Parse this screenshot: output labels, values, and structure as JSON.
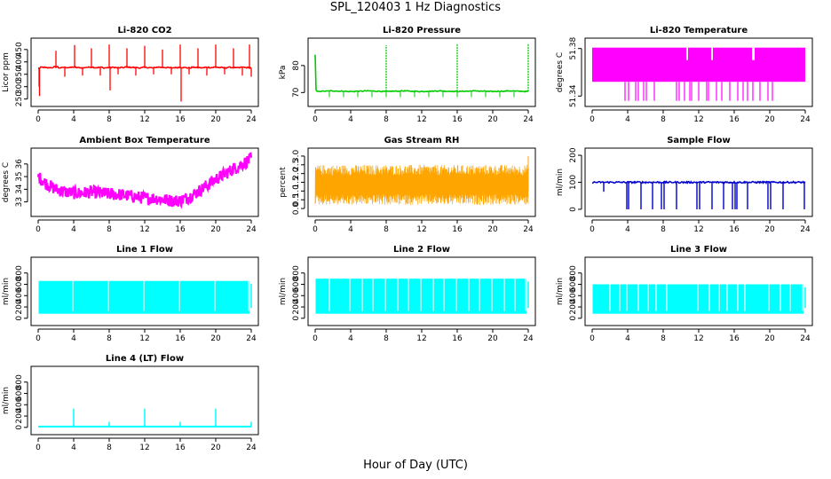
{
  "figure": {
    "title": "SPL_120403  1 Hz Diagnostics",
    "xlabel": "Hour of Day (UTC)"
  },
  "chart_data": [
    {
      "type": "line",
      "title": "Li-820 CO2",
      "ylabel": "Licor ppm",
      "color": "#ff0000",
      "xlim": [
        0,
        24
      ],
      "x_ticks": [
        0,
        4,
        8,
        12,
        16,
        20,
        24
      ],
      "ylim": [
        238,
        478
      ],
      "y_ticks": [
        250,
        300,
        350,
        400,
        450
      ],
      "baseline": 375,
      "x": [
        0,
        0.5,
        1,
        1.5,
        2,
        2.5,
        3,
        3.5,
        4,
        4.5,
        5,
        5.5,
        6,
        6.5,
        7,
        7.5,
        8,
        8.5,
        9,
        9.5,
        10,
        10.5,
        11,
        11.5,
        12,
        12.5,
        13,
        13.5,
        14,
        14.5,
        15,
        15.5,
        16,
        16.5,
        17,
        17.5,
        18,
        18.5,
        19,
        19.5,
        20,
        20.5,
        21,
        21.5,
        22,
        22.5,
        23,
        23.5,
        24
      ],
      "values": [
        375,
        378,
        376,
        377,
        380,
        376,
        378,
        377,
        379,
        377,
        376,
        378,
        379,
        377,
        378,
        376,
        377,
        378,
        376,
        377,
        379,
        378,
        377,
        376,
        378,
        377,
        376,
        379,
        378,
        377,
        376,
        377,
        378,
        377,
        376,
        378,
        377,
        376,
        378,
        377,
        379,
        377,
        376,
        378,
        377,
        376,
        378,
        377,
        376
      ],
      "spikes": [
        [
          0.1,
          300
        ],
        [
          0.15,
          262
        ],
        [
          2.0,
          445
        ],
        [
          3.0,
          340
        ],
        [
          4.1,
          468
        ],
        [
          5.0,
          345
        ],
        [
          6.0,
          455
        ],
        [
          7.0,
          345
        ],
        [
          8.0,
          470
        ],
        [
          8.1,
          285
        ],
        [
          9.0,
          350
        ],
        [
          10.0,
          455
        ],
        [
          11.0,
          345
        ],
        [
          12.0,
          465
        ],
        [
          13.0,
          350
        ],
        [
          14.0,
          450
        ],
        [
          15.0,
          350
        ],
        [
          16.0,
          470
        ],
        [
          16.1,
          240
        ],
        [
          17.0,
          350
        ],
        [
          18.0,
          455
        ],
        [
          19.0,
          345
        ],
        [
          20.0,
          470
        ],
        [
          21.0,
          350
        ],
        [
          22.0,
          455
        ],
        [
          23.0,
          345
        ],
        [
          23.8,
          470
        ],
        [
          24.0,
          340
        ]
      ]
    },
    {
      "type": "line",
      "title": "Li-820 Pressure",
      "ylabel": "kPa",
      "color": "#00cc00",
      "xlim": [
        0,
        24
      ],
      "x_ticks": [
        0,
        4,
        8,
        12,
        16,
        20,
        24
      ],
      "ylim": [
        66.5,
        88.5
      ],
      "y_ticks": [
        70,
        80
      ],
      "x": [
        0,
        0.1,
        0.2,
        0.3,
        1,
        2,
        3,
        4,
        5,
        6,
        7,
        8,
        9,
        10,
        11,
        12,
        13,
        14,
        15,
        16,
        17,
        18,
        19,
        20,
        21,
        22,
        23,
        24
      ],
      "values": [
        84,
        71,
        70.5,
        70.4,
        70.5,
        70.6,
        70.5,
        70.4,
        70.5,
        70.6,
        70.5,
        70.4,
        70.5,
        70.6,
        70.5,
        70.4,
        70.5,
        70.6,
        70.5,
        70.4,
        70.5,
        70.6,
        70.5,
        70.4,
        70.5,
        70.6,
        70.5,
        70.4
      ],
      "spikes": [
        [
          8.0,
          87.5
        ],
        [
          16.0,
          88
        ],
        [
          24.0,
          88
        ]
      ]
    },
    {
      "type": "line",
      "title": "Li-820 Temperature",
      "ylabel": "degrees C",
      "color": "#ff00ff",
      "xlim": [
        0,
        24
      ],
      "x_ticks": [
        0,
        4,
        8,
        12,
        16,
        20,
        24
      ],
      "ylim": [
        51.335,
        51.385
      ],
      "y_ticks": [
        51.34,
        51.38
      ],
      "y_tick_labels": [
        "51.34",
        "51.38"
      ],
      "upper": 51.38,
      "lower": 51.34,
      "gaps": [
        [
          10.6,
          10.8
        ],
        [
          13.4,
          13.6
        ],
        [
          18.0,
          18.3
        ]
      ],
      "dips": [
        3.7,
        4.1,
        4.9,
        5.2,
        5.8,
        6.1,
        7.0,
        9.5,
        9.8,
        10.4,
        11.0,
        11.2,
        12.0,
        12.9,
        13.1,
        14.0,
        14.6,
        15.5,
        16.4,
        17.0,
        17.5,
        18.1,
        18.9,
        19.8,
        20.3
      ]
    },
    {
      "type": "line",
      "title": "Ambient Box Temperature",
      "ylabel": "degrees C",
      "color": "#ff00ff",
      "xlim": [
        0,
        24
      ],
      "x_ticks": [
        0,
        4,
        8,
        12,
        16,
        20,
        24
      ],
      "ylim": [
        32.2,
        36.9
      ],
      "y_ticks": [
        33,
        34,
        35,
        36
      ],
      "x": [
        0,
        1,
        2,
        3,
        4,
        5,
        6,
        7,
        8,
        9,
        10,
        11,
        12,
        13,
        14,
        15,
        16,
        17,
        18,
        19,
        20,
        21,
        22,
        23,
        24
      ],
      "values": [
        35.0,
        34.4,
        34.0,
        33.8,
        33.7,
        33.7,
        33.8,
        33.7,
        33.6,
        33.6,
        33.5,
        33.4,
        33.3,
        33.3,
        33.2,
        33.1,
        33.1,
        33.4,
        33.8,
        34.3,
        34.8,
        35.2,
        35.6,
        36.0,
        36.4
      ],
      "spread": 0.5
    },
    {
      "type": "line",
      "title": "Gas Stream RH",
      "ylabel": "percent",
      "color": "#ffa500",
      "xlim": [
        0,
        24
      ],
      "x_ticks": [
        0,
        4,
        8,
        12,
        16,
        20,
        24
      ],
      "ylim": [
        -0.2,
        3.2
      ],
      "y_ticks": [
        0.0,
        0.5,
        1.0,
        1.5,
        2.0,
        2.5,
        3.0
      ],
      "y_tick_labels": [
        "0.0",
        "0.5",
        "1.0",
        "1.5",
        "2.0",
        "2.5",
        "3.0"
      ],
      "band_low": 0.2,
      "band_high": 2.5,
      "dense_low": 0.8,
      "dense_high": 1.9
    },
    {
      "type": "line",
      "title": "Sample Flow",
      "ylabel": "ml/min",
      "color": "#0000cc",
      "xlim": [
        0,
        24
      ],
      "x_ticks": [
        0,
        4,
        8,
        12,
        16,
        20,
        24
      ],
      "ylim": [
        -10,
        210
      ],
      "y_ticks": [
        0,
        100,
        200
      ],
      "baseline": 100,
      "dips": [
        [
          1.3,
          65
        ],
        [
          3.9,
          0
        ],
        [
          4.1,
          0
        ],
        [
          5.5,
          0
        ],
        [
          6.8,
          0
        ],
        [
          7.8,
          0
        ],
        [
          8.1,
          0
        ],
        [
          9.5,
          0
        ],
        [
          11.8,
          0
        ],
        [
          12.1,
          0
        ],
        [
          13.5,
          0
        ],
        [
          14.8,
          0
        ],
        [
          15.8,
          0
        ],
        [
          16.1,
          0
        ],
        [
          16.3,
          0
        ],
        [
          17.5,
          0
        ],
        [
          19.8,
          0
        ],
        [
          20.1,
          0
        ],
        [
          21.5,
          0
        ],
        [
          23.9,
          0
        ]
      ]
    },
    {
      "type": "line",
      "title": "Line 1 Flow",
      "ylabel": "ml/min",
      "color": "#00ffff",
      "xlim": [
        0,
        24
      ],
      "x_ticks": [
        0,
        4,
        8,
        12,
        16,
        20,
        24
      ],
      "ylim": [
        -50,
        1000
      ],
      "y_ticks": [
        0,
        200,
        400,
        600,
        800
      ],
      "band_low": 80,
      "band_high": 660,
      "gaps": [
        3.9,
        7.9,
        11.9,
        15.9,
        19.9,
        23.7
      ]
    },
    {
      "type": "line",
      "title": "Line 2 Flow",
      "ylabel": "ml/min",
      "color": "#00ffff",
      "xlim": [
        0,
        24
      ],
      "x_ticks": [
        0,
        4,
        8,
        12,
        16,
        20,
        24
      ],
      "ylim": [
        -50,
        1000
      ],
      "y_ticks": [
        0,
        200,
        400,
        600,
        800
      ],
      "band_low": 80,
      "band_high": 700,
      "gaps": [
        1.6,
        3.9,
        5.3,
        6.5,
        7.9,
        9.3,
        10.5,
        11.9,
        13.3,
        14.5,
        15.9,
        17.3,
        18.5,
        19.9,
        21.3,
        22.5,
        23.7
      ]
    },
    {
      "type": "line",
      "title": "Line 3 Flow",
      "ylabel": "ml/min",
      "color": "#00ffff",
      "xlim": [
        0,
        24
      ],
      "x_ticks": [
        0,
        4,
        8,
        12,
        16,
        20,
        24
      ],
      "ylim": [
        -50,
        1000
      ],
      "y_ticks": [
        0,
        200,
        400,
        600,
        800
      ],
      "band_low": 80,
      "band_high": 600,
      "gaps": [
        2.0,
        3.1,
        3.9,
        5.2,
        6.3,
        7.2,
        8.4,
        11.9,
        13.2,
        14.3,
        15.2,
        16.4,
        17.2,
        19.9,
        21.2,
        22.3,
        23.7
      ]
    },
    {
      "type": "line",
      "title": "Line 4 (LT) Flow",
      "ylabel": "ml/min",
      "color": "#00ffff",
      "xlim": [
        0,
        24
      ],
      "x_ticks": [
        0,
        4,
        8,
        12,
        16,
        20,
        24
      ],
      "ylim": [
        -50,
        1000
      ],
      "y_ticks": [
        0,
        200,
        400,
        600,
        800
      ],
      "baseline": 15,
      "spikes": [
        [
          4.0,
          330
        ],
        [
          8.0,
          100
        ],
        [
          12.0,
          330
        ],
        [
          16.0,
          100
        ],
        [
          20.0,
          330
        ],
        [
          24.0,
          100
        ]
      ]
    }
  ]
}
